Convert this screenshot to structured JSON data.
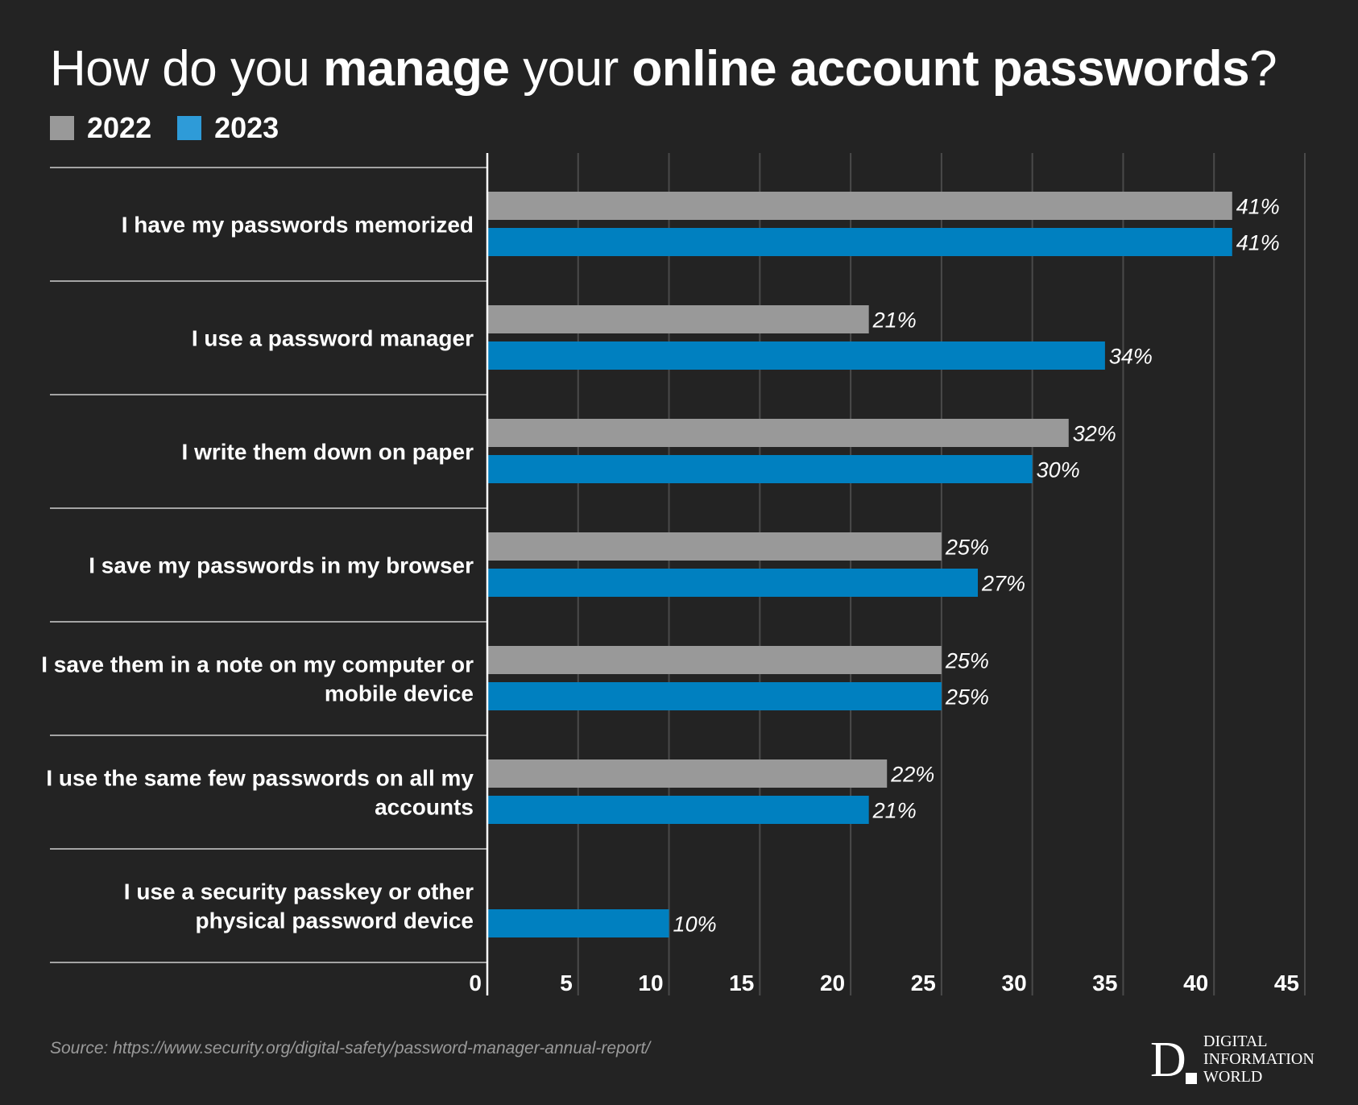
{
  "title": {
    "parts": [
      {
        "text": "How do you ",
        "bold": false
      },
      {
        "text": "manage",
        "bold": true
      },
      {
        "text": " your ",
        "bold": false
      },
      {
        "text": "online account passwords",
        "bold": true
      },
      {
        "text": "?",
        "bold": false
      }
    ]
  },
  "legend": {
    "items": [
      {
        "label": "2022",
        "color": "#999999"
      },
      {
        "label": "2023",
        "color": "#2e9bd8"
      }
    ]
  },
  "chart_data": {
    "type": "bar",
    "orientation": "horizontal",
    "title": "How do you manage your online account passwords?",
    "categories": [
      [
        "I have my passwords memorized"
      ],
      [
        "I use a password manager"
      ],
      [
        "I write them down on paper"
      ],
      [
        "I save my passwords in my browser"
      ],
      [
        "I save them in a note on my computer or",
        "mobile device"
      ],
      [
        "I use the same few passwords on all my",
        "accounts"
      ],
      [
        "I use a security passkey or other",
        "physical password device"
      ]
    ],
    "series": [
      {
        "name": "2022",
        "color": "#999999",
        "values": [
          41,
          21,
          32,
          25,
          25,
          22,
          null
        ]
      },
      {
        "name": "2023",
        "color": "#0080c0",
        "values": [
          41,
          34,
          30,
          27,
          25,
          21,
          10
        ]
      }
    ],
    "value_suffix": "%",
    "xlim": [
      0,
      45
    ],
    "xticks": [
      0,
      5,
      10,
      15,
      20,
      25,
      30,
      35,
      40,
      45
    ],
    "grid": true,
    "legend_position": "top-left"
  },
  "source": "Source: https://www.security.org/digital-safety/password-manager-annual-report/",
  "logo": {
    "mark": "D",
    "square_color": "#ffffff",
    "lines": [
      "DIGITAL",
      "INFORMATION",
      "WORLD"
    ]
  }
}
